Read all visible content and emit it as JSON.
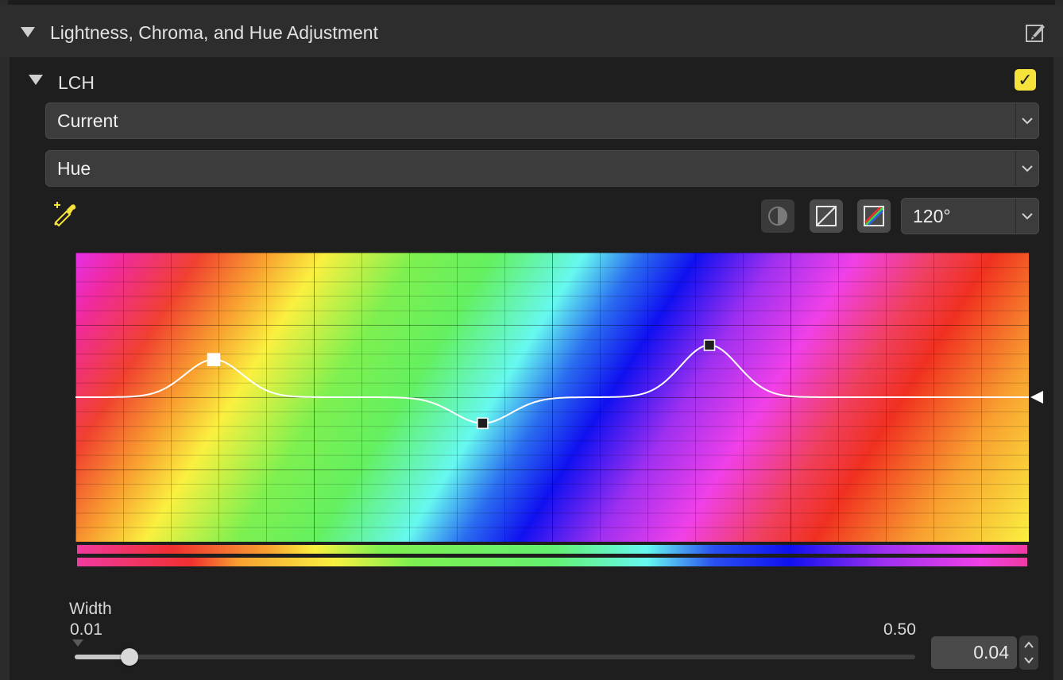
{
  "section": {
    "title": "Lightness, Chroma, and Hue Adjustment"
  },
  "lch": {
    "label": "LCH",
    "enabled": true,
    "check_glyph": "✓",
    "accent_color": "#f5e23a"
  },
  "dropdowns": {
    "mode": {
      "value": "Current"
    },
    "channel": {
      "value": "Hue"
    },
    "range": {
      "value": "120°"
    }
  },
  "icons": {
    "eyedropper": "eyedropper-add-icon",
    "half_circle": "contrast-icon",
    "diagonal": "linear-curve-icon",
    "color_diagonal": "color-curve-icon",
    "edit": "edit-brush-icon"
  },
  "curve": {
    "baseline": 0.5,
    "points": [
      {
        "hue": 0.145,
        "value": 0.63
      },
      {
        "hue": 0.427,
        "value": 0.41
      },
      {
        "hue": 0.665,
        "value": 0.68
      }
    ]
  },
  "width_slider": {
    "label": "Width",
    "min_label": "0.01",
    "max_label": "0.50",
    "value": "0.04",
    "fraction": 0.065
  }
}
